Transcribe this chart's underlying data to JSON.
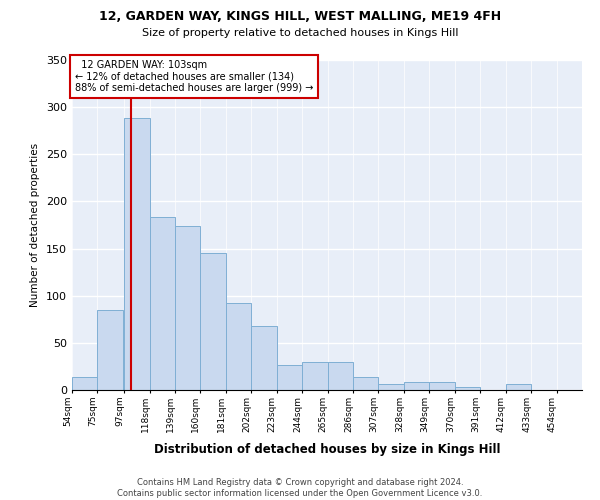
{
  "title1": "12, GARDEN WAY, KINGS HILL, WEST MALLING, ME19 4FH",
  "title2": "Size of property relative to detached houses in Kings Hill",
  "xlabel": "Distribution of detached houses by size in Kings Hill",
  "ylabel": "Number of detached properties",
  "annotation_title": "12 GARDEN WAY: 103sqm",
  "annotation_line1": "← 12% of detached houses are smaller (134)",
  "annotation_line2": "88% of semi-detached houses are larger (999) →",
  "vline_x": 103,
  "bin_edges": [
    54,
    75,
    97,
    118,
    139,
    160,
    181,
    202,
    223,
    244,
    265,
    286,
    307,
    328,
    349,
    370,
    391,
    412,
    433,
    454,
    475
  ],
  "bar_heights": [
    14,
    85,
    288,
    184,
    174,
    145,
    92,
    68,
    27,
    30,
    30,
    14,
    6,
    8,
    8,
    3,
    0,
    6,
    0,
    0
  ],
  "bar_color": "#c9d9ef",
  "bar_edgecolor": "#7fafd4",
  "vline_color": "#cc0000",
  "annotation_box_color": "#cc0000",
  "background_color": "#e8eef8",
  "grid_color": "#ffffff",
  "footer_line1": "Contains HM Land Registry data © Crown copyright and database right 2024.",
  "footer_line2": "Contains public sector information licensed under the Open Government Licence v3.0.",
  "ylim": [
    0,
    350
  ],
  "yticks": [
    0,
    50,
    100,
    150,
    200,
    250,
    300,
    350
  ]
}
